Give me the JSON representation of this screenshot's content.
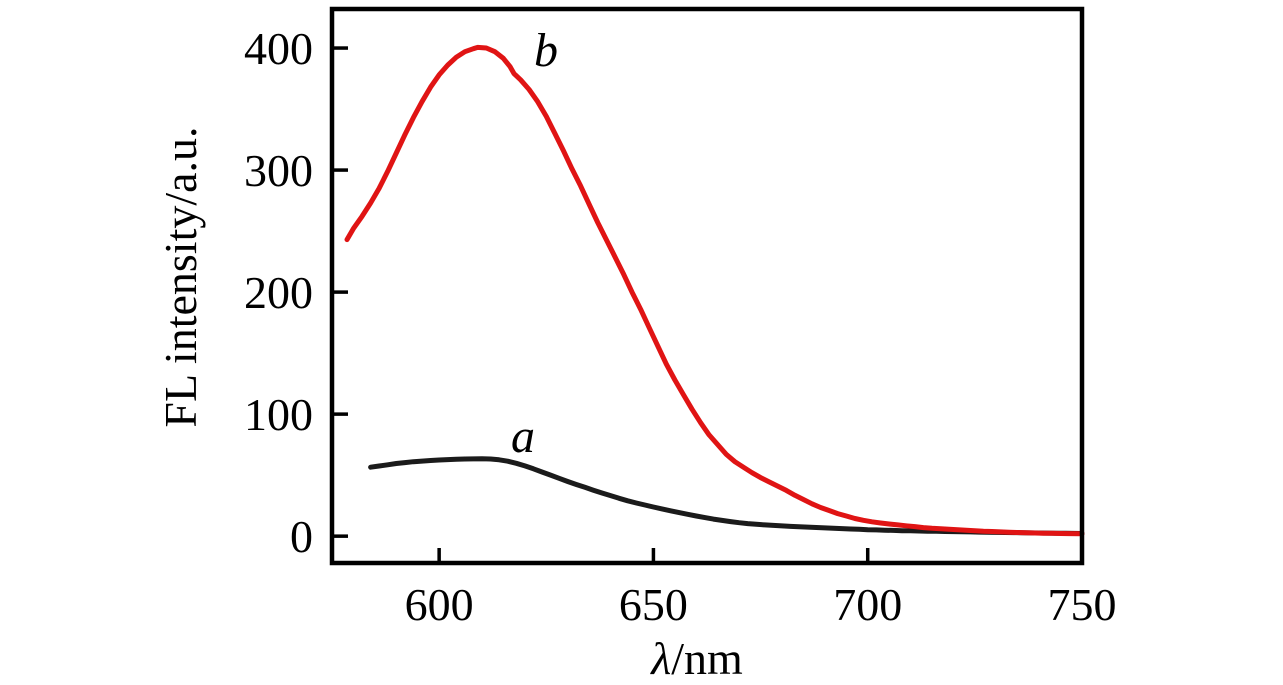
{
  "figure": {
    "background": "#ffffff",
    "axis_color": "#000000",
    "xlabel_italic": "λ",
    "xlabel_normal": "/nm"
  },
  "chart_data": {
    "type": "line",
    "title": "",
    "xlabel": "λ/nm",
    "ylabel": "FL intensity/a.u.",
    "xlim": [
      575,
      750
    ],
    "ylim": [
      -22,
      432
    ],
    "x_ticks": [
      600,
      650,
      700,
      750
    ],
    "y_ticks": [
      0,
      100,
      200,
      300,
      400
    ],
    "grid": false,
    "legend_position": "none (inline curve letters)",
    "series": [
      {
        "name": "a",
        "color": "#1b1b1b",
        "peak": {
          "x": 610,
          "y": 63
        },
        "points": [
          [
            584,
            56.5
          ],
          [
            586,
            57.5
          ],
          [
            588,
            58.5
          ],
          [
            590,
            59.5
          ],
          [
            592,
            60.3
          ],
          [
            594,
            61
          ],
          [
            596,
            61.5
          ],
          [
            598,
            62
          ],
          [
            600,
            62.4
          ],
          [
            602,
            62.7
          ],
          [
            604,
            63
          ],
          [
            606,
            63.2
          ],
          [
            608,
            63.3
          ],
          [
            610,
            63.4
          ],
          [
            612,
            63.2
          ],
          [
            614,
            62.6
          ],
          [
            616,
            61.4
          ],
          [
            618,
            59.7
          ],
          [
            620,
            57.6
          ],
          [
            622,
            55.2
          ],
          [
            624,
            52.6
          ],
          [
            626,
            50
          ],
          [
            628,
            47.4
          ],
          [
            630,
            44.8
          ],
          [
            632,
            42.3
          ],
          [
            634,
            40
          ],
          [
            636,
            37.7
          ],
          [
            638,
            35.4
          ],
          [
            640,
            33.2
          ],
          [
            642,
            31
          ],
          [
            644,
            29
          ],
          [
            646,
            27.2
          ],
          [
            648,
            25.5
          ],
          [
            650,
            23.9
          ],
          [
            652,
            22.3
          ],
          [
            654,
            20.8
          ],
          [
            656,
            19.3
          ],
          [
            658,
            17.9
          ],
          [
            660,
            16.5
          ],
          [
            662,
            15.2
          ],
          [
            664,
            14
          ],
          [
            666,
            12.9
          ],
          [
            668,
            11.9
          ],
          [
            670,
            11
          ],
          [
            672,
            10.3
          ],
          [
            674,
            9.7
          ],
          [
            676,
            9.2
          ],
          [
            678,
            8.8
          ],
          [
            680,
            8.4
          ],
          [
            682,
            8
          ],
          [
            684,
            7.7
          ],
          [
            686,
            7.4
          ],
          [
            688,
            7.1
          ],
          [
            690,
            6.8
          ],
          [
            692,
            6.5
          ],
          [
            694,
            6.2
          ],
          [
            696,
            5.9
          ],
          [
            698,
            5.6
          ],
          [
            700,
            5.3
          ],
          [
            702,
            5.1
          ],
          [
            704,
            4.9
          ],
          [
            706,
            4.7
          ],
          [
            708,
            4.5
          ],
          [
            710,
            4.4
          ],
          [
            712,
            4.2
          ],
          [
            714,
            4.1
          ],
          [
            716,
            4
          ],
          [
            718,
            3.8
          ],
          [
            720,
            3.7
          ],
          [
            722,
            3.6
          ],
          [
            724,
            3.5
          ],
          [
            726,
            3.3
          ],
          [
            728,
            3.2
          ],
          [
            730,
            3.1
          ],
          [
            732,
            3
          ],
          [
            734,
            2.9
          ],
          [
            736,
            2.8
          ],
          [
            738,
            2.7
          ],
          [
            740,
            2.6
          ],
          [
            742,
            2.5
          ],
          [
            744,
            2.4
          ],
          [
            746,
            2.3
          ],
          [
            748,
            2.25
          ],
          [
            750,
            2.2
          ]
        ]
      },
      {
        "name": "b",
        "color": "#e01414",
        "peak": {
          "x": 609,
          "y": 400
        },
        "points": [
          [
            578.5,
            243
          ],
          [
            580,
            252
          ],
          [
            582,
            262
          ],
          [
            584,
            273
          ],
          [
            586,
            285
          ],
          [
            588,
            299
          ],
          [
            590,
            314
          ],
          [
            592,
            329
          ],
          [
            594,
            343
          ],
          [
            596,
            356
          ],
          [
            598,
            368
          ],
          [
            600,
            378
          ],
          [
            602,
            386
          ],
          [
            604,
            392.5
          ],
          [
            606,
            397
          ],
          [
            608,
            399.5
          ],
          [
            609,
            400.5
          ],
          [
            611,
            400
          ],
          [
            613,
            397
          ],
          [
            615,
            391.5
          ],
          [
            616.5,
            385
          ],
          [
            617.5,
            379
          ],
          [
            619,
            374
          ],
          [
            621,
            366
          ],
          [
            623,
            356
          ],
          [
            625,
            344
          ],
          [
            627,
            330
          ],
          [
            629,
            316
          ],
          [
            631,
            301
          ],
          [
            633,
            287
          ],
          [
            635,
            272
          ],
          [
            637,
            257
          ],
          [
            639,
            243
          ],
          [
            641,
            229
          ],
          [
            643,
            215
          ],
          [
            645,
            200
          ],
          [
            647,
            186
          ],
          [
            649,
            171
          ],
          [
            651,
            156
          ],
          [
            653,
            141
          ],
          [
            655,
            128
          ],
          [
            657,
            116
          ],
          [
            659,
            104
          ],
          [
            661,
            93
          ],
          [
            663,
            83
          ],
          [
            665,
            75
          ],
          [
            667,
            67
          ],
          [
            669,
            61
          ],
          [
            671,
            56.5
          ],
          [
            673,
            52
          ],
          [
            675,
            48
          ],
          [
            677,
            44.5
          ],
          [
            679,
            41
          ],
          [
            681,
            37.5
          ],
          [
            683,
            33.5
          ],
          [
            685,
            30
          ],
          [
            687,
            26.5
          ],
          [
            689,
            23.5
          ],
          [
            691,
            21
          ],
          [
            693,
            18.5
          ],
          [
            695,
            16.5
          ],
          [
            697,
            14.5
          ],
          [
            699,
            13
          ],
          [
            701,
            11.8
          ],
          [
            703,
            10.8
          ],
          [
            705,
            10
          ],
          [
            707,
            9.2
          ],
          [
            709,
            8.5
          ],
          [
            711,
            7.8
          ],
          [
            713,
            7
          ],
          [
            715,
            6.4
          ],
          [
            717,
            6
          ],
          [
            719,
            5.6
          ],
          [
            721,
            5.2
          ],
          [
            723,
            4.8
          ],
          [
            725,
            4.5
          ],
          [
            727,
            4.1
          ],
          [
            729,
            3.8
          ],
          [
            731,
            3.5
          ],
          [
            733,
            3.2
          ],
          [
            735,
            3
          ],
          [
            737,
            2.8
          ],
          [
            739,
            2.6
          ],
          [
            741,
            2.4
          ],
          [
            743,
            2.3
          ],
          [
            745,
            2.2
          ],
          [
            747,
            2.1
          ],
          [
            750,
            2
          ]
        ]
      }
    ]
  }
}
